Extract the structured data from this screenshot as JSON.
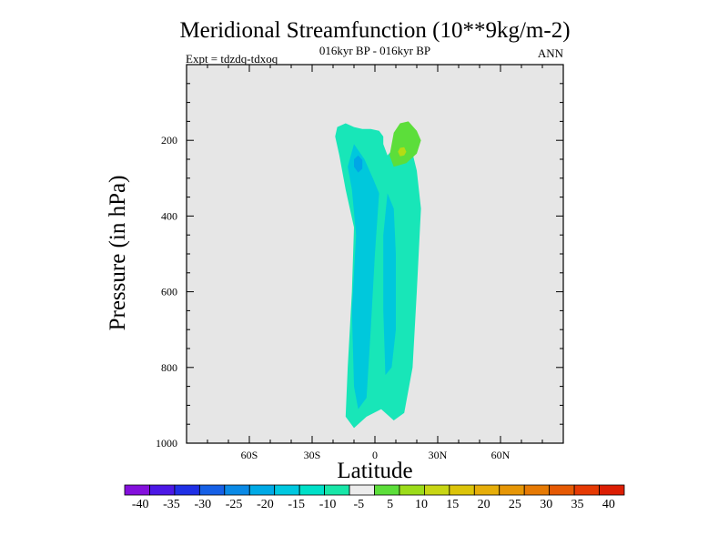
{
  "chart_data": {
    "type": "contour",
    "title": "Meridional Streamfunction (10**9kg/m-2)",
    "subtitle": "016kyr BP - 016kyr BP",
    "left_label": "Expt = tdzdq-tdxoq",
    "right_label": "ANN",
    "xlabel": "Latitude",
    "ylabel": "Pressure (in hPa)",
    "xlim": [
      -90,
      90
    ],
    "ylim": [
      1000,
      0
    ],
    "x_ticks": [
      {
        "value": -60,
        "label": "60S"
      },
      {
        "value": -30,
        "label": "30S"
      },
      {
        "value": 0,
        "label": "0"
      },
      {
        "value": 30,
        "label": "30N"
      },
      {
        "value": 60,
        "label": "60N"
      }
    ],
    "y_ticks": [
      {
        "value": 200,
        "label": "200"
      },
      {
        "value": 400,
        "label": "400"
      },
      {
        "value": 600,
        "label": "600"
      },
      {
        "value": 800,
        "label": "800"
      },
      {
        "value": 1000,
        "label": "1000"
      }
    ],
    "plot_background": "#e6e6e6",
    "contour_regions": [
      {
        "level": -7.5,
        "color": "#18e6b8",
        "points": [
          [
            -18,
            165
          ],
          [
            -14,
            155
          ],
          [
            -10,
            165
          ],
          [
            -6,
            170
          ],
          [
            -2,
            170
          ],
          [
            2,
            175
          ],
          [
            4,
            190
          ],
          [
            4,
            210
          ],
          [
            6,
            240
          ],
          [
            10,
            215
          ],
          [
            14,
            222
          ],
          [
            18,
            235
          ],
          [
            20,
            280
          ],
          [
            22,
            380
          ],
          [
            20,
            600
          ],
          [
            18,
            800
          ],
          [
            14,
            920
          ],
          [
            9,
            940
          ],
          [
            3,
            910
          ],
          [
            -4,
            930
          ],
          [
            -10,
            960
          ],
          [
            -14,
            930
          ],
          [
            -13,
            800
          ],
          [
            -11,
            600
          ],
          [
            -10,
            430
          ],
          [
            -14,
            330
          ],
          [
            -17,
            240
          ],
          [
            -19,
            190
          ]
        ]
      },
      {
        "level": -12.5,
        "color": "#00c8dc",
        "points": [
          [
            -10,
            210
          ],
          [
            -5,
            250
          ],
          [
            -1,
            300
          ],
          [
            2,
            340
          ],
          [
            0,
            500
          ],
          [
            -2,
            700
          ],
          [
            -4,
            880
          ],
          [
            -8,
            910
          ],
          [
            -10,
            850
          ],
          [
            -11,
            650
          ],
          [
            -9,
            450
          ],
          [
            -11,
            330
          ],
          [
            -13,
            270
          ]
        ]
      },
      {
        "level": -12.5,
        "color": "#00c8dc",
        "points": [
          [
            6,
            340
          ],
          [
            9,
            380
          ],
          [
            10,
            500
          ],
          [
            10,
            700
          ],
          [
            8,
            800
          ],
          [
            5,
            820
          ],
          [
            4,
            650
          ],
          [
            4,
            450
          ]
        ]
      },
      {
        "level": -17.5,
        "color": "#00a6e6",
        "points": [
          [
            -8,
            240
          ],
          [
            -6,
            252
          ],
          [
            -6,
            275
          ],
          [
            -8,
            285
          ],
          [
            -10,
            270
          ],
          [
            -10,
            250
          ]
        ]
      },
      {
        "level": 7.5,
        "color": "#5cde3a",
        "points": [
          [
            9,
            180
          ],
          [
            12,
            155
          ],
          [
            16,
            150
          ],
          [
            20,
            175
          ],
          [
            22,
            200
          ],
          [
            20,
            235
          ],
          [
            15,
            260
          ],
          [
            9,
            270
          ],
          [
            7,
            240
          ],
          [
            8,
            210
          ]
        ]
      },
      {
        "level": 12.5,
        "color": "#b4dc14",
        "points": [
          [
            11,
            230
          ],
          [
            12,
            220
          ],
          [
            14,
            218
          ],
          [
            15,
            230
          ],
          [
            14,
            240
          ],
          [
            12,
            242
          ]
        ]
      }
    ],
    "colorbar": {
      "colors": [
        "#8410dc",
        "#4c18e6",
        "#2030e6",
        "#1660e6",
        "#0a8ae6",
        "#00aae6",
        "#00c8e0",
        "#00e0c8",
        "#18e6a8",
        "#ececec",
        "#5cde3a",
        "#9cdc1a",
        "#c8d614",
        "#dcc40a",
        "#e6ae0a",
        "#e69606",
        "#e67a04",
        "#e65a04",
        "#e63a04",
        "#dc1e04"
      ],
      "labels": [
        "-40",
        "-35",
        "-30",
        "-25",
        "-20",
        "-15",
        "-10",
        "-5",
        "5",
        "10",
        "15",
        "20",
        "25",
        "30",
        "35",
        "40"
      ]
    }
  }
}
